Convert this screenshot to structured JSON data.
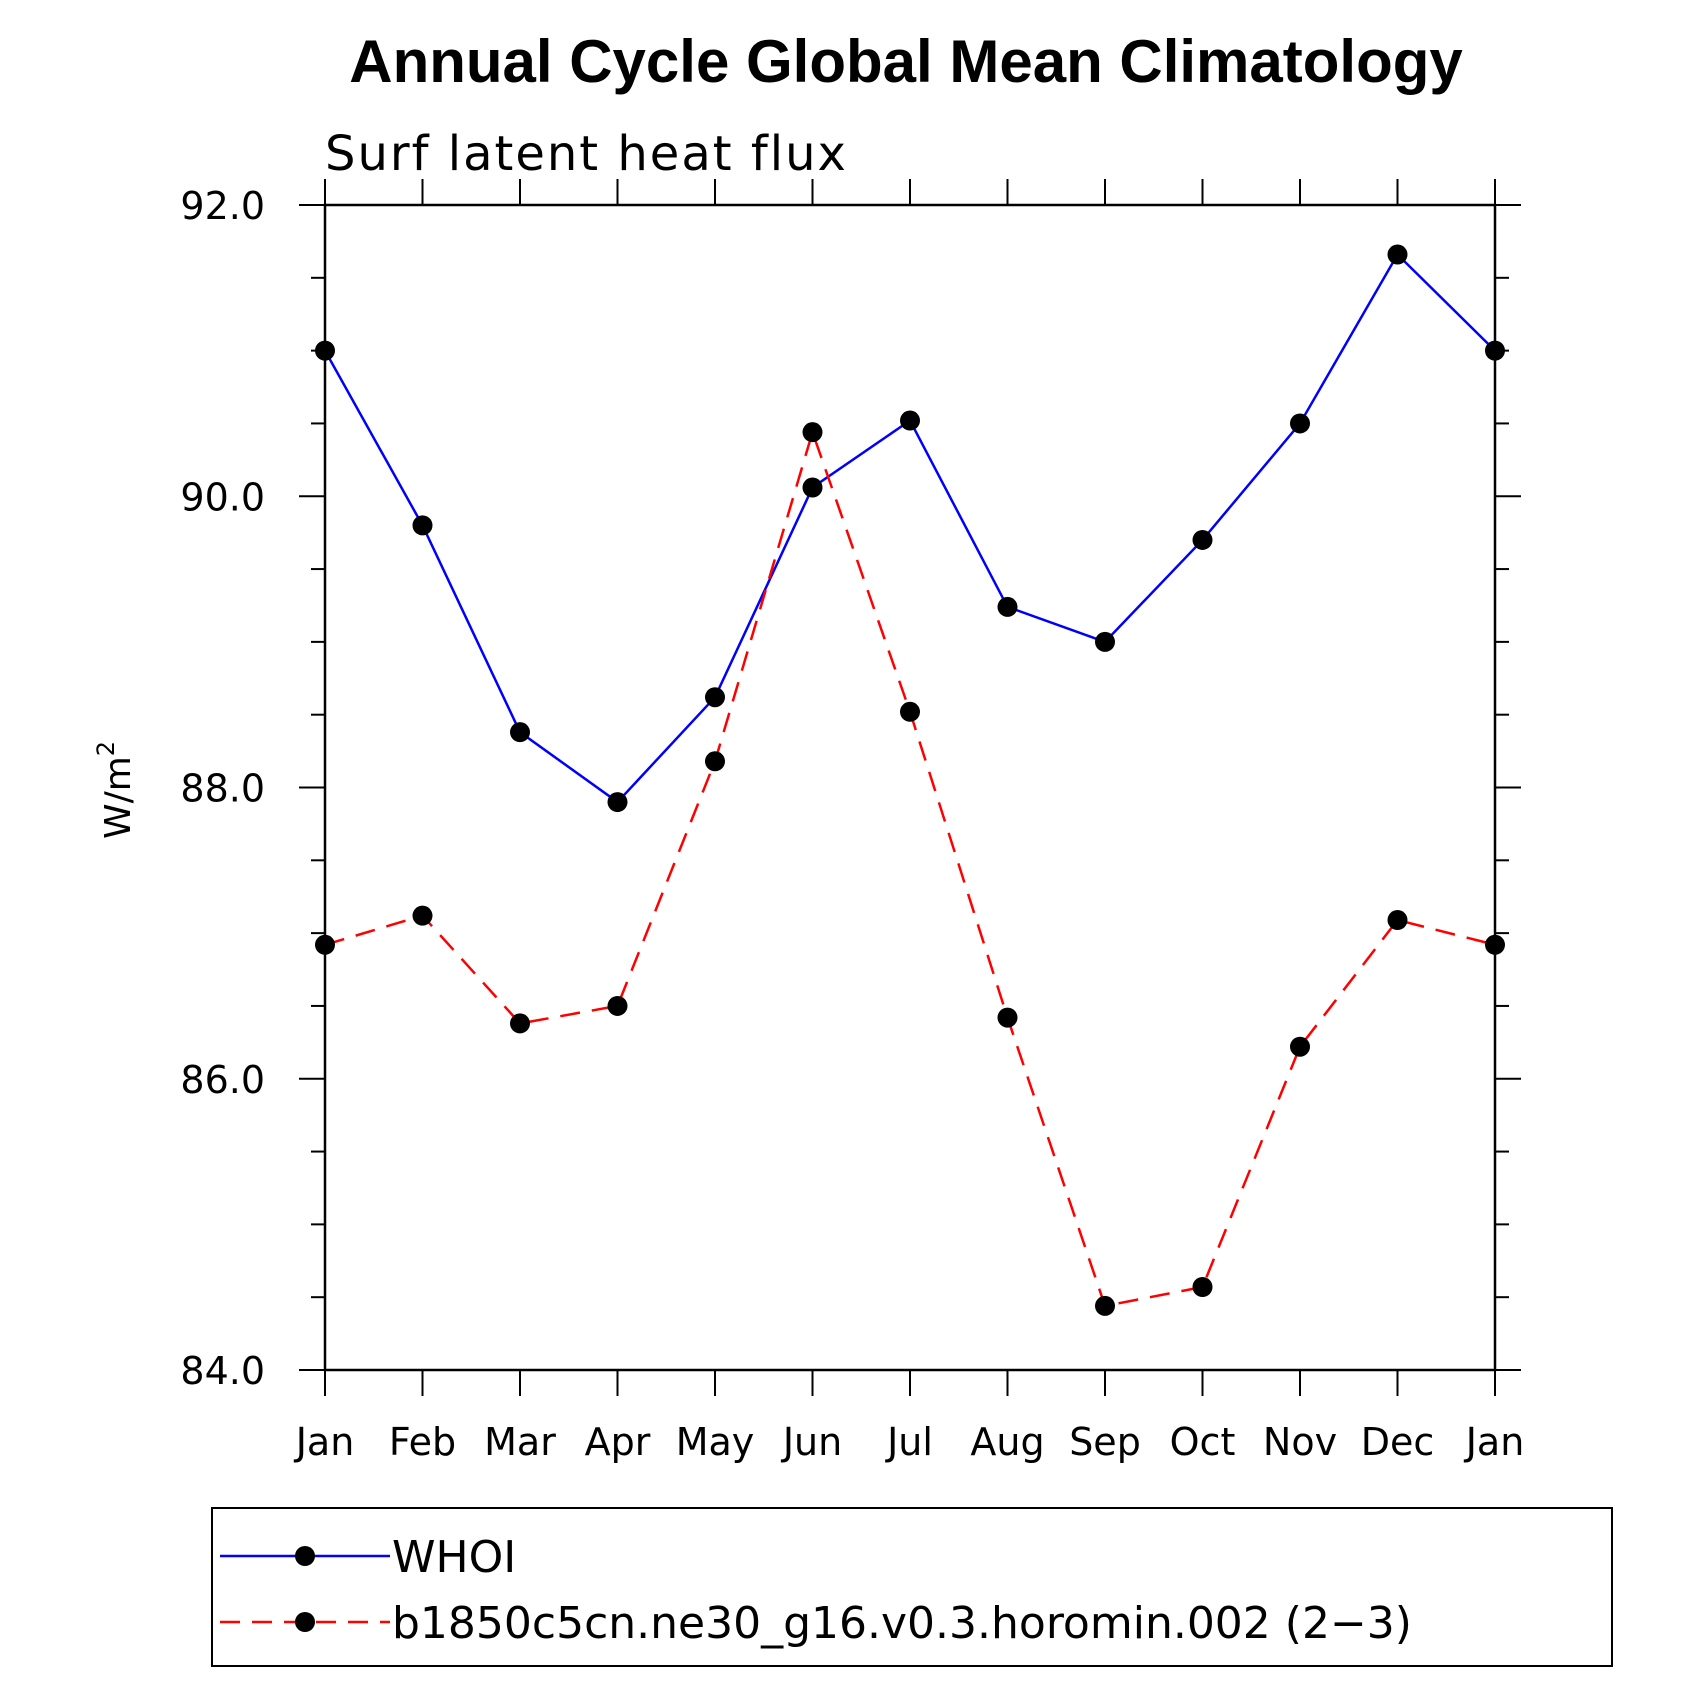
{
  "chart_data": {
    "type": "line",
    "title": "Annual Cycle Global Mean Climatology",
    "subtitle": "Surf latent heat flux",
    "ylabel": "W/m",
    "ylabel_sup": "2",
    "ylim": [
      84.0,
      92.0
    ],
    "y_ticks": [
      "84.0",
      "86.0",
      "88.0",
      "90.0",
      "92.0"
    ],
    "y_tick_values": [
      84.0,
      86.0,
      88.0,
      90.0,
      92.0
    ],
    "y_minor_step": 0.5,
    "categories": [
      "Jan",
      "Feb",
      "Mar",
      "Apr",
      "May",
      "Jun",
      "Jul",
      "Aug",
      "Sep",
      "Oct",
      "Nov",
      "Dec",
      "Jan"
    ],
    "series": [
      {
        "name": "WHOI",
        "color": "#0000ff",
        "dash": "solid",
        "values": [
          91.0,
          89.8,
          88.38,
          87.9,
          88.62,
          90.06,
          90.52,
          89.24,
          89.0,
          89.7,
          90.5,
          91.66,
          91.0
        ]
      },
      {
        "name": "b1850c5cn.ne30_g16.v0.3.horomin.002 (2-3)",
        "color": "#ff0000",
        "dash": "dashed",
        "values": [
          86.92,
          87.12,
          86.38,
          86.5,
          88.18,
          90.44,
          88.52,
          86.42,
          84.44,
          84.57,
          86.22,
          87.09,
          86.92
        ]
      }
    ],
    "legend": {
      "placement": "bottom",
      "entries": [
        "WHOI",
        "b1850c5cn.ne30_g16.v0.3.horomin.002 (2−3)"
      ]
    },
    "grid": false
  }
}
